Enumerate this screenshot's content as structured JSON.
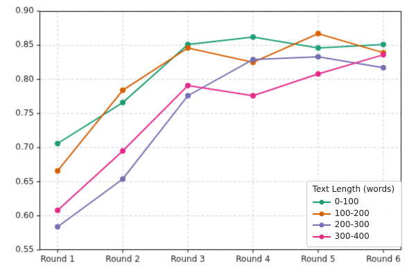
{
  "chart_data": {
    "type": "line",
    "title": "",
    "xlabel": "",
    "ylabel": "",
    "categories": [
      "Round 1",
      "Round 2",
      "Round 3",
      "Round 4",
      "Round 5",
      "Round 6"
    ],
    "series": [
      {
        "name": "0-100",
        "color": "#1b9e77",
        "values": [
          0.706,
          0.766,
          0.851,
          0.862,
          0.846,
          0.851
        ]
      },
      {
        "name": "100-200",
        "color": "#d95f02",
        "values": [
          0.666,
          0.784,
          0.846,
          0.825,
          0.867,
          0.839
        ]
      },
      {
        "name": "200-300",
        "color": "#7570b3",
        "values": [
          0.584,
          0.654,
          0.776,
          0.829,
          0.833,
          0.817
        ]
      },
      {
        "name": "300-400",
        "color": "#e7298a",
        "values": [
          0.608,
          0.695,
          0.791,
          0.776,
          0.808,
          0.836
        ]
      }
    ],
    "legend_title": "Text Length (words)",
    "legend_position": "lower right",
    "ylim": [
      0.55,
      0.9
    ],
    "ytick_step": 0.05,
    "ytick_labels": [
      "0.55",
      "0.60",
      "0.65",
      "0.70",
      "0.75",
      "0.80",
      "0.85",
      "0.90"
    ],
    "grid": true,
    "grid_style": "dashed",
    "marker": "circle"
  }
}
